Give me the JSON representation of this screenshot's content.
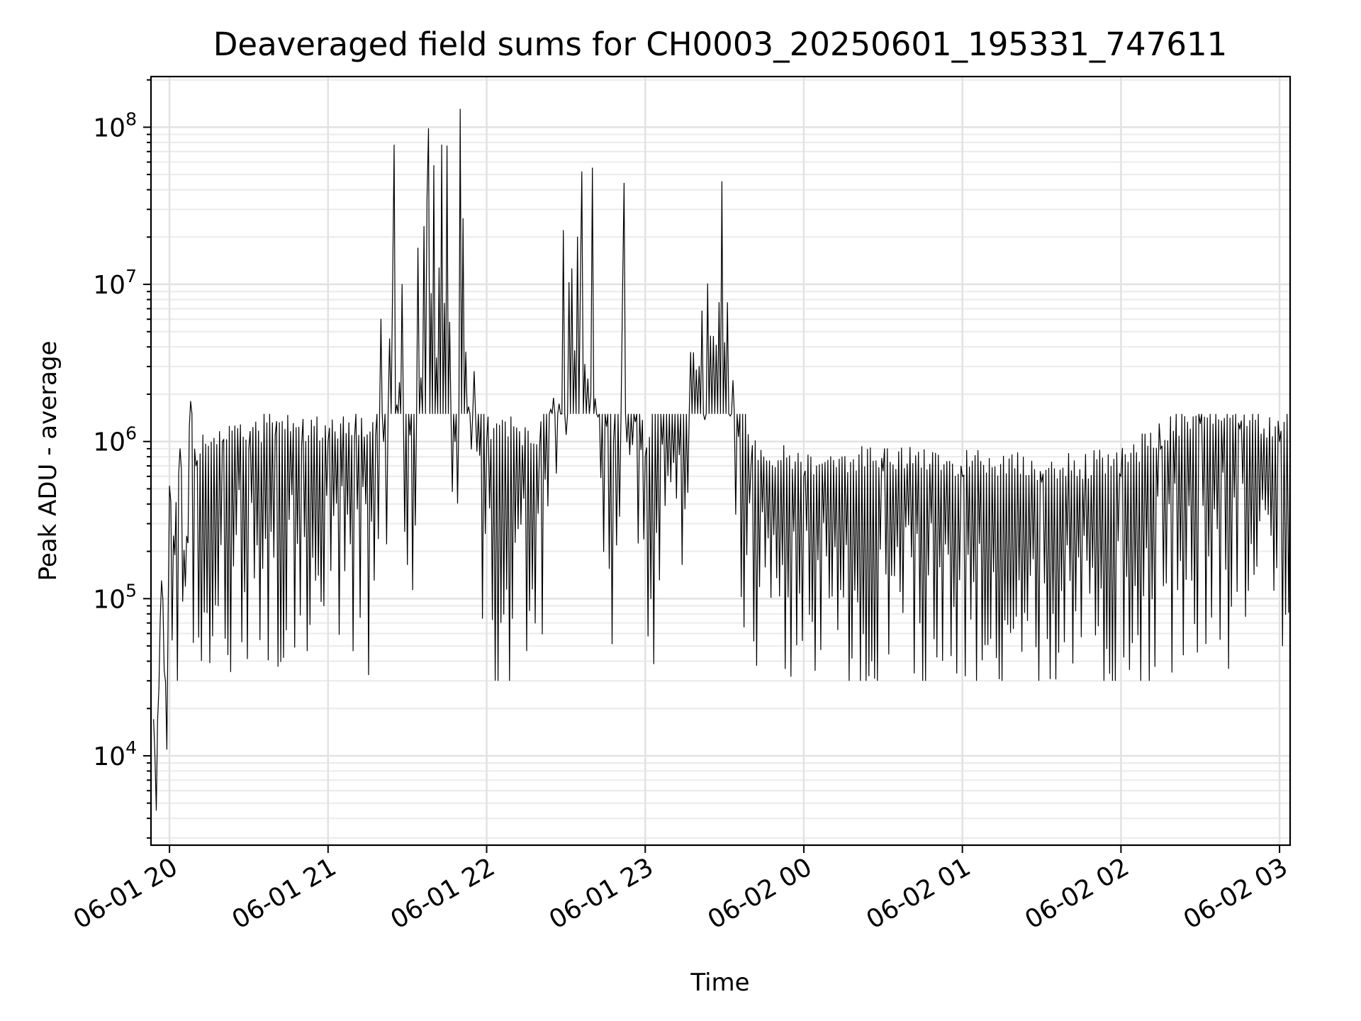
{
  "chart_data": {
    "type": "line",
    "title": "Deaveraged field sums for CH0003_20250601_195331_747611",
    "xlabel": "Time",
    "ylabel": "Peak ADU - average",
    "yscale": "log",
    "ylim": [
      2700,
      210000000
    ],
    "xlim": [
      "2025-06-01 19:53",
      "2025-06-02 03:04"
    ],
    "x_ticks": [
      "06-01 20",
      "06-01 21",
      "06-01 22",
      "06-01 23",
      "06-02 00",
      "06-02 01",
      "06-02 02",
      "06-02 03"
    ],
    "y_ticks": [
      {
        "base": "10",
        "exp": "4"
      },
      {
        "base": "10",
        "exp": "5"
      },
      {
        "base": "10",
        "exp": "6"
      },
      {
        "base": "10",
        "exp": "7"
      },
      {
        "base": "10",
        "exp": "8"
      }
    ],
    "grid": true,
    "line_color": "#000000",
    "series": [
      {
        "x": [
          "2025-06-01 19:54",
          "2025-06-01 19:55",
          "2025-06-01 19:56",
          "2025-06-01 19:57",
          "2025-06-01 19:58",
          "2025-06-01 19:59",
          "2025-06-01 20:00",
          "2025-06-01 20:02",
          "2025-06-01 20:04",
          "2025-06-01 20:06",
          "2025-06-01 20:08",
          "2025-06-01 20:10",
          "2025-06-01 20:20",
          "2025-06-01 20:30",
          "2025-06-01 20:40",
          "2025-06-01 20:50",
          "2025-06-01 21:00",
          "2025-06-01 21:10",
          "2025-06-01 21:18",
          "2025-06-01 21:20",
          "2025-06-01 21:21",
          "2025-06-01 21:25",
          "2025-06-01 21:28",
          "2025-06-01 21:31",
          "2025-06-01 21:34",
          "2025-06-01 21:38",
          "2025-06-01 21:40",
          "2025-06-01 21:43",
          "2025-06-01 21:45",
          "2025-06-01 21:48",
          "2025-06-01 21:50",
          "2025-06-01 22:00",
          "2025-06-01 22:20",
          "2025-06-01 22:29",
          "2025-06-01 22:36",
          "2025-06-01 22:40",
          "2025-06-01 22:48",
          "2025-06-01 22:52",
          "2025-06-01 23:00",
          "2025-06-01 23:29",
          "2025-06-01 23:40",
          "2025-06-02 00:00",
          "2025-06-02 00:30",
          "2025-06-02 01:00",
          "2025-06-02 01:30",
          "2025-06-02 02:00",
          "2025-06-02 02:15",
          "2025-06-02 02:30",
          "2025-06-02 02:45",
          "2025-06-02 03:00",
          "2025-06-02 03:04"
        ],
        "y": [
          17000,
          4500,
          27000,
          130000,
          35000,
          11000,
          520000,
          190000,
          900000,
          120000,
          1800000,
          700000,
          1000000,
          900000,
          1100000,
          950000,
          1000000,
          1050000,
          1100000,
          6000000,
          1000000,
          77000000,
          10000000,
          1100000,
          17000000,
          98000000,
          57000000,
          77000000,
          76000000,
          1000000,
          130000000,
          1000000,
          900000,
          22000000,
          52000000,
          55000000,
          1000000,
          44000000,
          800000,
          45000000,
          700000,
          600000,
          650000,
          600000,
          550000,
          600000,
          900000,
          1300000,
          1200000,
          1000000,
          1300000
        ]
      }
    ]
  }
}
